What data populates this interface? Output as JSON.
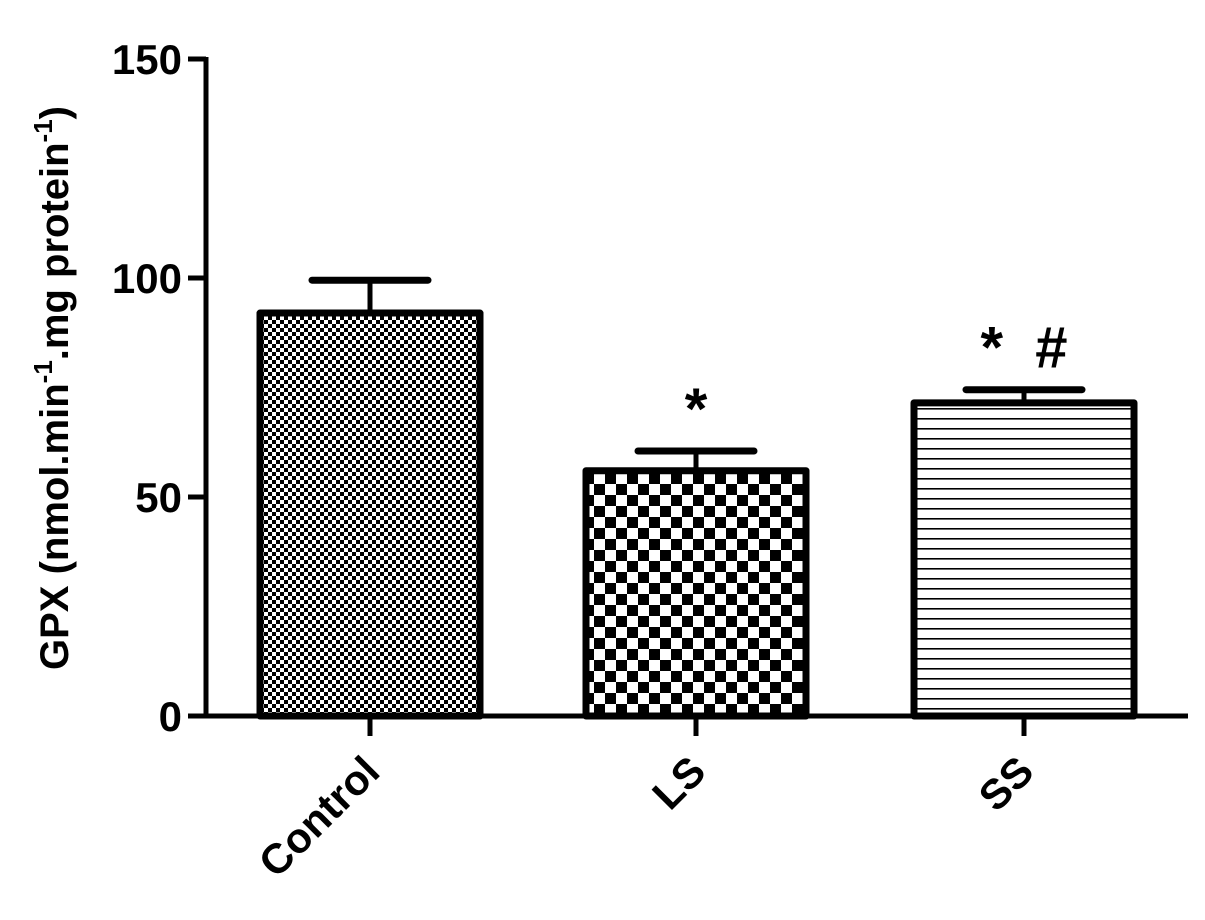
{
  "chart_data": {
    "type": "bar",
    "title": "",
    "xlabel": "",
    "ylabel": {
      "main": "GPX (nmol.min",
      "sup1": "-1",
      "mid": ".mg protein",
      "sup2": "-1",
      "end": ")"
    },
    "ylim": [
      0,
      150
    ],
    "yticks": [
      0,
      50,
      100,
      150
    ],
    "grid": false,
    "legend": "none",
    "categories": [
      "Control",
      "LS",
      "SS"
    ],
    "values": [
      92,
      56,
      71.5
    ],
    "errors": [
      7.5,
      4.5,
      3
    ],
    "annotations": [
      "",
      "*",
      "*  #"
    ],
    "patterns": [
      "fine-dots",
      "checkerboard",
      "horizontal-lines"
    ],
    "colors": {
      "stroke": "#000000",
      "fill": "#ffffff"
    }
  }
}
